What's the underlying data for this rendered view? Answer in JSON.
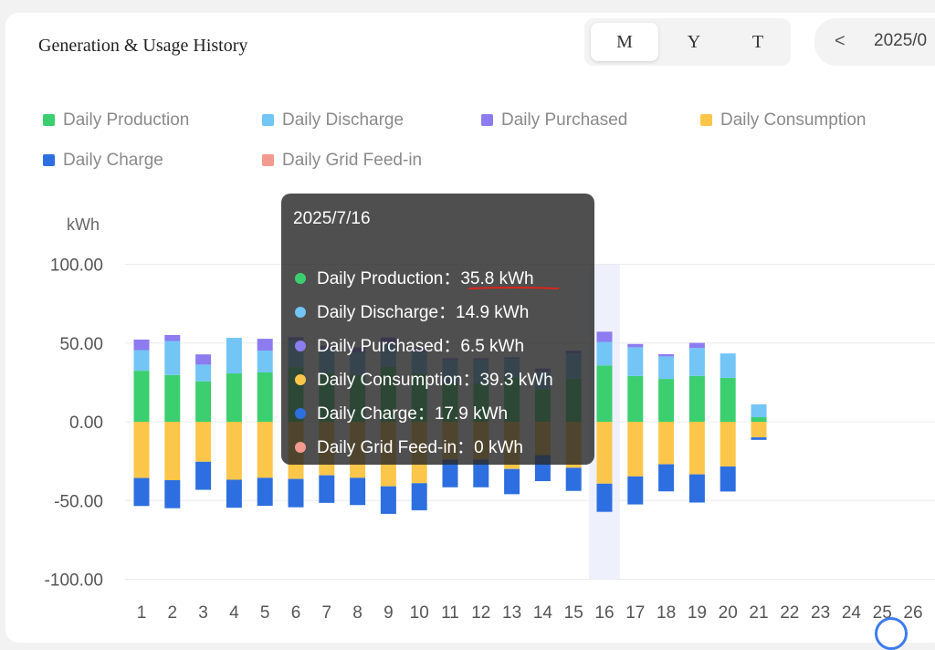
{
  "title": "Generation & Usage History",
  "period_tabs": [
    {
      "label": "M",
      "active": true
    },
    {
      "label": "Y",
      "active": false
    },
    {
      "label": "T",
      "active": false
    }
  ],
  "date_nav": {
    "prev_icon": "chevron-left-icon",
    "prev_label": "<",
    "date": "2025/0"
  },
  "legend": [
    {
      "label": "Daily Production",
      "color": "#3ccf6f"
    },
    {
      "label": "Daily Discharge",
      "color": "#73c5f5"
    },
    {
      "label": "Daily Purchased",
      "color": "#8c7cf0"
    },
    {
      "label": "Daily Consumption",
      "color": "#fcc64a"
    },
    {
      "label": "Daily Charge",
      "color": "#2d6fe0"
    },
    {
      "label": "Daily Grid Feed-in",
      "color": "#f39a8e"
    }
  ],
  "chart_data": {
    "type": "bar",
    "stacked": true,
    "ylabel": "kWh",
    "ylim": [
      -100,
      100
    ],
    "yticks": [
      "100.00",
      "50.00",
      "0.00",
      "-50.00",
      "-100.00"
    ],
    "categories": [
      "1",
      "2",
      "3",
      "4",
      "5",
      "6",
      "7",
      "8",
      "9",
      "10",
      "11",
      "12",
      "13",
      "14",
      "15",
      "16",
      "17",
      "18",
      "19",
      "20",
      "21",
      "22",
      "23",
      "24",
      "25",
      "26"
    ],
    "highlight_category": "16",
    "series": [
      {
        "name": "Daily Production",
        "color": "#3ccf6f",
        "values": [
          32.4,
          29.7,
          25.7,
          30.7,
          31.3,
          34.7,
          31,
          29.7,
          35,
          30.5,
          24.5,
          24.5,
          28,
          20.7,
          27.4,
          35.8,
          29.1,
          27.2,
          29.1,
          27.9,
          2.9,
          0,
          0,
          0,
          0,
          0
        ]
      },
      {
        "name": "Daily Discharge",
        "color": "#73c5f5",
        "values": [
          13.1,
          21.6,
          10.6,
          22.6,
          13.9,
          17,
          15,
          14.5,
          15,
          14.1,
          15,
          15,
          12,
          11.3,
          16.1,
          14.9,
          18.2,
          14.3,
          17.8,
          15.5,
          8.2,
          0,
          0,
          0,
          0,
          0
        ]
      },
      {
        "name": "Daily Purchased",
        "color": "#8c7cf0",
        "values": [
          6.7,
          3.8,
          6.5,
          0,
          7.5,
          2,
          2.3,
          3,
          3.5,
          2.5,
          0.8,
          0.8,
          0.9,
          1.8,
          1.6,
          6.5,
          2.1,
          1.4,
          3.2,
          0,
          0,
          0,
          0,
          0,
          0,
          0
        ]
      },
      {
        "name": "Daily Consumption",
        "color": "#fcc64a",
        "values": [
          -35.7,
          -37.1,
          -25.4,
          -36.8,
          -35.6,
          -36.3,
          -34,
          -35.6,
          -41,
          -39,
          -24,
          -24,
          -30,
          -21.2,
          -29.2,
          -39.3,
          -34.7,
          -27,
          -33.4,
          -28.4,
          -9.9,
          0,
          0,
          0,
          0,
          0
        ]
      },
      {
        "name": "Daily Charge",
        "color": "#2d6fe0",
        "values": [
          -17.8,
          -17.8,
          -17.8,
          -17.8,
          -17.8,
          -18,
          -17.5,
          -17.3,
          -17.5,
          -17.2,
          -17.6,
          -17.6,
          -16,
          -16.5,
          -14.7,
          -17.9,
          -17.8,
          -17.2,
          -17.9,
          -15.9,
          -1.6,
          0,
          0,
          0,
          0,
          0
        ]
      },
      {
        "name": "Daily Grid Feed-in",
        "color": "#f39a8e",
        "values": [
          0,
          0,
          0,
          0,
          0,
          0,
          0,
          0,
          0,
          0,
          0,
          0,
          0,
          0,
          0,
          0,
          0,
          0,
          0,
          0,
          0,
          0,
          0,
          0,
          0,
          0
        ]
      }
    ]
  },
  "tooltip": {
    "date": "2025/7/16",
    "rows": [
      {
        "label": "Daily Production：",
        "value": "35.8 kWh",
        "color": "#3ccf6f"
      },
      {
        "label": "Daily Discharge：",
        "value": "14.9 kWh",
        "color": "#73c5f5"
      },
      {
        "label": "Daily Purchased：",
        "value": "6.5 kWh",
        "color": "#8c7cf0"
      },
      {
        "label": "Daily Consumption：",
        "value": "39.3 kWh",
        "color": "#fcc64a"
      },
      {
        "label": "Daily Charge：",
        "value": "17.9 kWh",
        "color": "#2d6fe0"
      },
      {
        "label": "Daily Grid Feed-in：",
        "value": "0 kWh",
        "color": "#f39a8e"
      }
    ]
  },
  "annotation_color": "#d9261c"
}
